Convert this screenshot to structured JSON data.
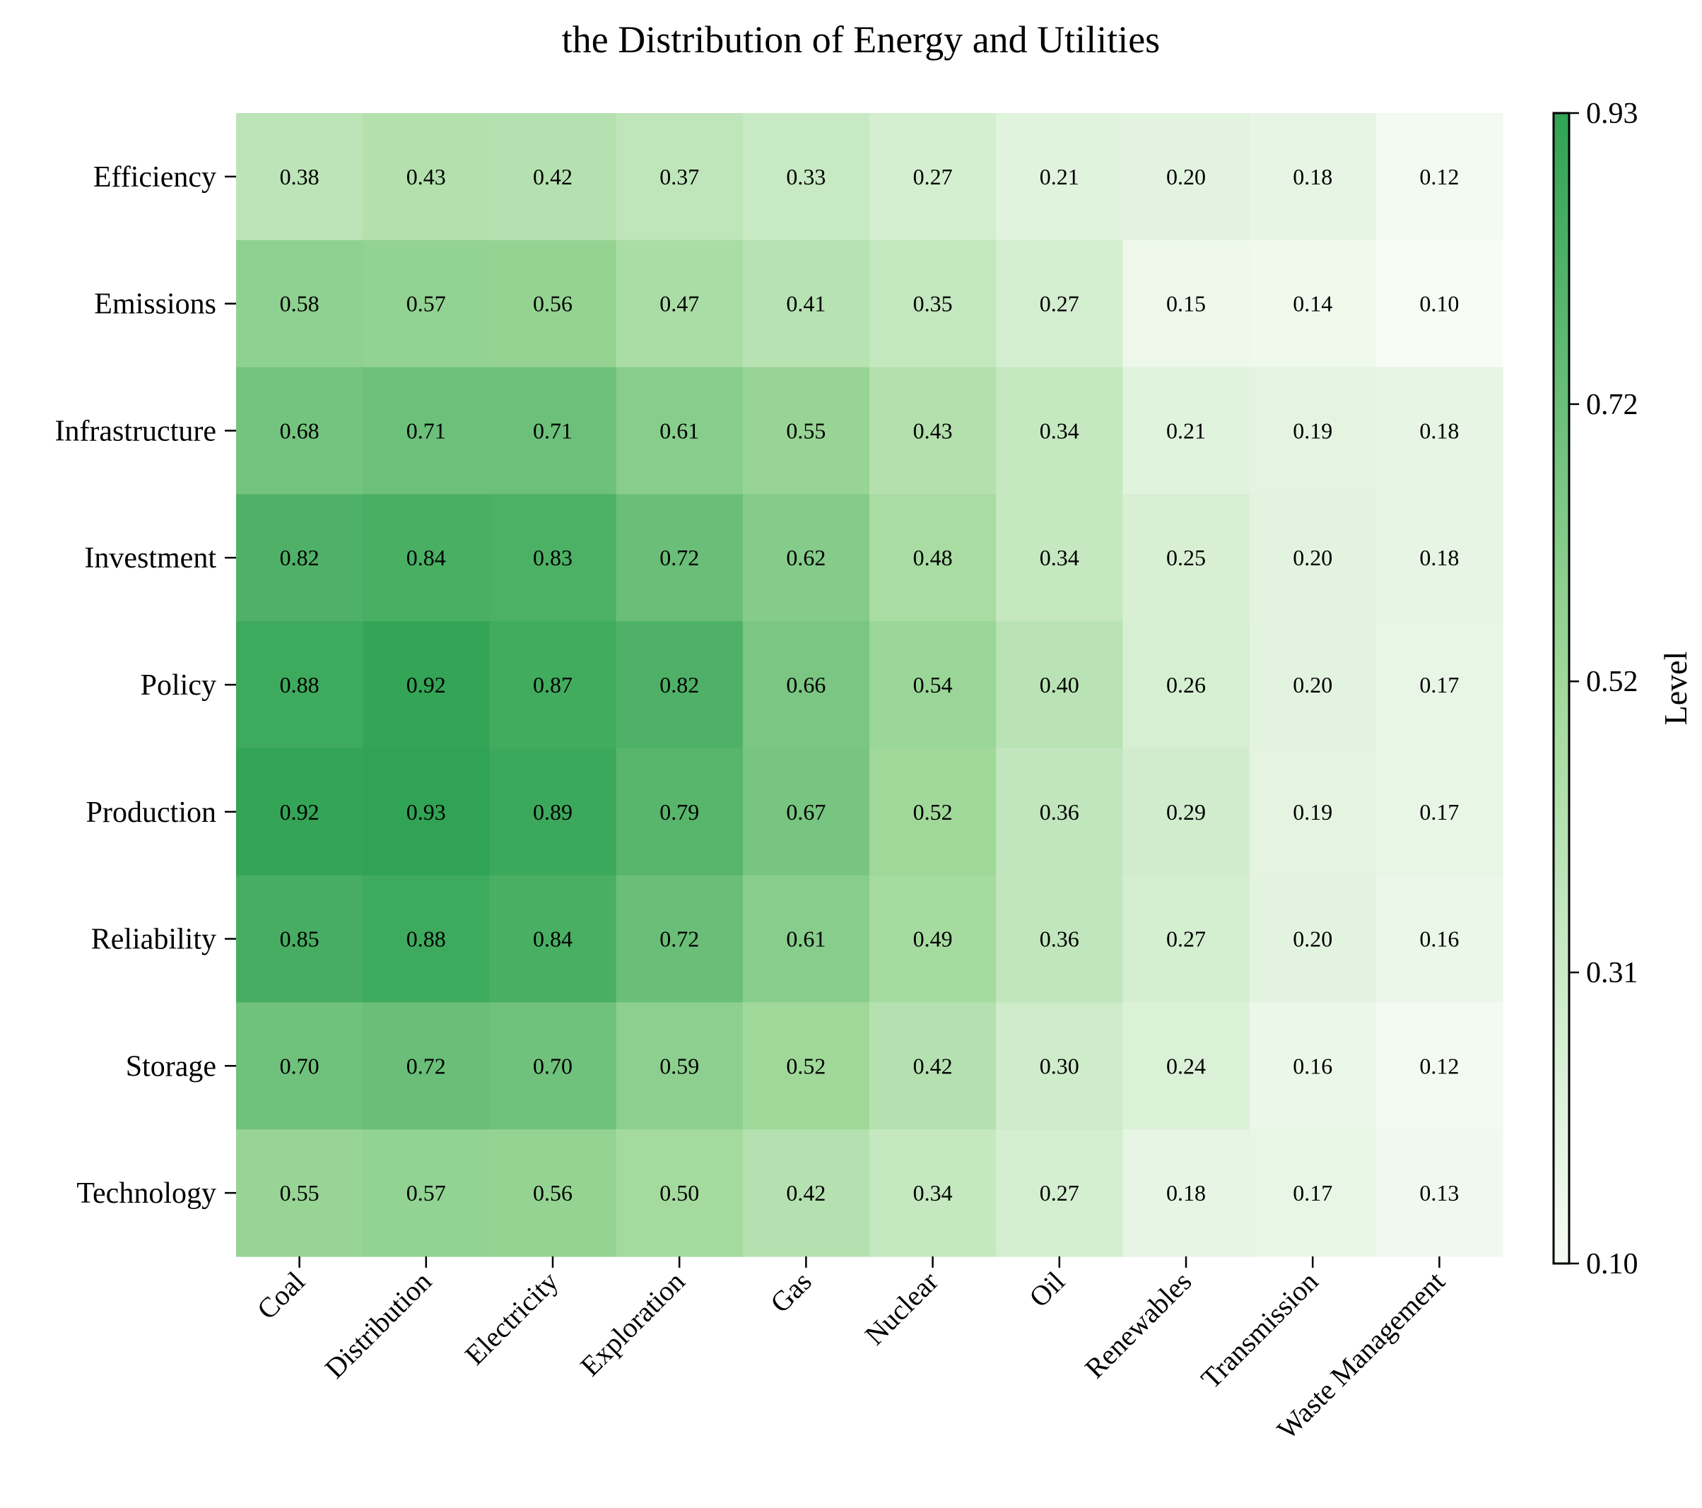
{
  "chart_data": {
    "type": "heatmap",
    "title": "the Distribution of Energy and Utilities",
    "xlabel": "",
    "ylabel": "",
    "colorbar_label": "Level",
    "columns": [
      "Coal",
      "Distribution",
      "Electricity",
      "Exploration",
      "Gas",
      "Nuclear",
      "Oil",
      "Renewables",
      "Transmission",
      "Waste Management"
    ],
    "rows": [
      "Efficiency",
      "Emissions",
      "Infrastructure",
      "Investment",
      "Policy",
      "Production",
      "Reliability",
      "Storage",
      "Technology"
    ],
    "values": [
      [
        0.38,
        0.43,
        0.42,
        0.37,
        0.33,
        0.27,
        0.21,
        0.2,
        0.18,
        0.12
      ],
      [
        0.58,
        0.57,
        0.56,
        0.47,
        0.41,
        0.35,
        0.27,
        0.15,
        0.14,
        0.1
      ],
      [
        0.68,
        0.71,
        0.71,
        0.61,
        0.55,
        0.43,
        0.34,
        0.21,
        0.19,
        0.18
      ],
      [
        0.82,
        0.84,
        0.83,
        0.72,
        0.62,
        0.48,
        0.34,
        0.25,
        0.2,
        0.18
      ],
      [
        0.88,
        0.92,
        0.87,
        0.82,
        0.66,
        0.54,
        0.4,
        0.26,
        0.2,
        0.17
      ],
      [
        0.92,
        0.93,
        0.89,
        0.79,
        0.67,
        0.52,
        0.36,
        0.29,
        0.19,
        0.17
      ],
      [
        0.85,
        0.88,
        0.84,
        0.72,
        0.61,
        0.49,
        0.36,
        0.27,
        0.2,
        0.16
      ],
      [
        0.7,
        0.72,
        0.7,
        0.59,
        0.52,
        0.42,
        0.3,
        0.24,
        0.16,
        0.12
      ],
      [
        0.55,
        0.57,
        0.56,
        0.5,
        0.42,
        0.34,
        0.27,
        0.18,
        0.17,
        0.13
      ]
    ],
    "value_format": "0.00",
    "colorbar": {
      "min": 0.1,
      "max": 0.93,
      "ticks": [
        0.1,
        0.31,
        0.52,
        0.72,
        0.93
      ],
      "tick_labels": [
        "0.10",
        "0.31",
        "0.52",
        "0.72",
        "0.93"
      ]
    },
    "colormap": {
      "name": "Greens",
      "low": "#f7fcf5",
      "high": "#31a354"
    },
    "grid": false,
    "legend": "colorbar right"
  }
}
